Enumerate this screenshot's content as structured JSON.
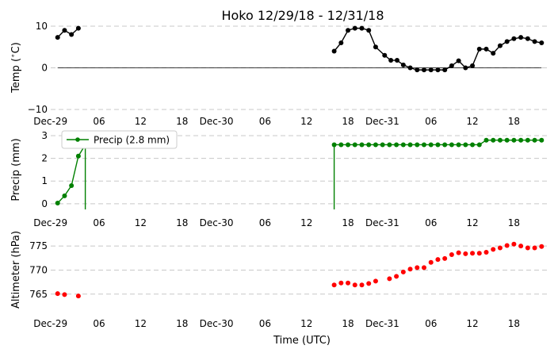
{
  "chart_data": {
    "title": "Hoko 12/29/18 - 12/31/18",
    "xlabel": "Time (UTC)",
    "x_tick_labels": [
      "Dec-29",
      "06",
      "12",
      "18",
      "Dec-30",
      "06",
      "12",
      "18",
      "Dec-31",
      "06",
      "12",
      "18"
    ],
    "x_tick_hours": [
      0,
      6,
      12,
      18,
      24,
      30,
      36,
      42,
      48,
      54,
      60,
      66
    ],
    "x_unit": "hours since Dec-29 00:00 UTC",
    "xlim": [
      -1,
      71
    ],
    "panels": [
      {
        "type": "line",
        "ylabel": "Temp ($^\\circ$C)",
        "ylim": [
          -10,
          10
        ],
        "yticks": [
          "10",
          "0",
          "−10"
        ],
        "ytick_values": [
          10,
          0,
          -10
        ],
        "grid": "horizontal dashed",
        "zero_line": true,
        "color": "#000000",
        "series": [
          {
            "x": [
              0,
              1,
              2,
              3
            ],
            "y": [
              7.3,
              9,
              8,
              9.5
            ]
          },
          {
            "x": [
              40,
              41,
              42,
              43,
              44,
              45,
              46,
              47.3,
              48.2,
              49.1,
              50,
              51,
              52,
              53,
              54,
              55,
              56,
              57,
              58,
              59,
              60,
              61,
              62,
              63,
              64,
              65,
              66,
              67,
              68,
              69,
              70
            ],
            "y": [
              4,
              6,
              9,
              9.5,
              9.5,
              9,
              5,
              3,
              1.8,
              1.8,
              0.7,
              0,
              -0.5,
              -0.5,
              -0.5,
              -0.5,
              -0.5,
              0.5,
              1.7,
              0,
              0.5,
              4.5,
              4.5,
              3.5,
              5.3,
              6.3,
              7,
              7.3,
              7,
              6.3,
              6
            ]
          }
        ]
      },
      {
        "type": "line",
        "ylabel": "Precip (mm)",
        "ylim": [
          -0.25,
          3.0
        ],
        "yticks": [
          "3",
          "2",
          "1",
          "0"
        ],
        "ytick_values": [
          3,
          2,
          1,
          0
        ],
        "grid": "horizontal dashed",
        "color": "#008000",
        "legend": {
          "label": "Precip (2.8 mm)",
          "loc": "upper-left"
        },
        "series": [
          {
            "x": [
              0,
              1,
              2,
              3,
              4,
              4,
              4
            ],
            "y": [
              0.03,
              0.35,
              0.8,
              2.1,
              2.6,
              2.6,
              -0.25
            ],
            "markers": [
              true,
              true,
              true,
              true,
              true,
              false,
              false
            ]
          },
          {
            "x": [
              40,
              40,
              41,
              42,
              43,
              44,
              45,
              46,
              47,
              48,
              49,
              50,
              51,
              52,
              53,
              54,
              55,
              56,
              57,
              58,
              59,
              60,
              61,
              62,
              63,
              64,
              65,
              66,
              67,
              68,
              69,
              70
            ],
            "y": [
              -0.25,
              2.6,
              2.6,
              2.6,
              2.6,
              2.6,
              2.6,
              2.6,
              2.6,
              2.6,
              2.6,
              2.6,
              2.6,
              2.6,
              2.6,
              2.6,
              2.6,
              2.6,
              2.6,
              2.6,
              2.6,
              2.6,
              2.6,
              2.8,
              2.8,
              2.8,
              2.8,
              2.8,
              2.8,
              2.8,
              2.8,
              2.8
            ],
            "markers": [
              false,
              true,
              true,
              true,
              true,
              true,
              true,
              true,
              true,
              true,
              true,
              true,
              true,
              true,
              true,
              true,
              true,
              true,
              true,
              true,
              true,
              true,
              true,
              true,
              true,
              true,
              true,
              true,
              true,
              true,
              true,
              true
            ]
          }
        ]
      },
      {
        "type": "scatter",
        "ylabel": "Altimeter (hPa)",
        "ylim": [
          761,
          777
        ],
        "yticks": [
          "775",
          "770",
          "765"
        ],
        "ytick_values": [
          775,
          770,
          765
        ],
        "grid": "horizontal dashed",
        "color": "#ff0000",
        "series": [
          {
            "x": [
              0,
              1,
              3
            ],
            "y": [
              765.1,
              764.9,
              764.6
            ]
          },
          {
            "x": [
              40,
              41,
              42,
              43,
              44,
              45,
              46,
              48,
              49,
              50,
              51,
              52,
              53,
              54,
              55,
              56,
              57,
              58,
              59,
              60,
              61,
              62,
              63,
              64,
              65,
              66,
              67,
              68,
              69,
              70
            ],
            "y": [
              766.9,
              767.3,
              767.3,
              766.9,
              766.9,
              767.2,
              767.7,
              768.2,
              768.7,
              769.6,
              770.2,
              770.5,
              770.5,
              771.6,
              772.2,
              772.4,
              773.2,
              773.6,
              773.4,
              773.5,
              773.5,
              773.7,
              774.3,
              774.6,
              775.1,
              775.4,
              775.0,
              774.6,
              774.6,
              774.9
            ]
          }
        ]
      }
    ]
  }
}
